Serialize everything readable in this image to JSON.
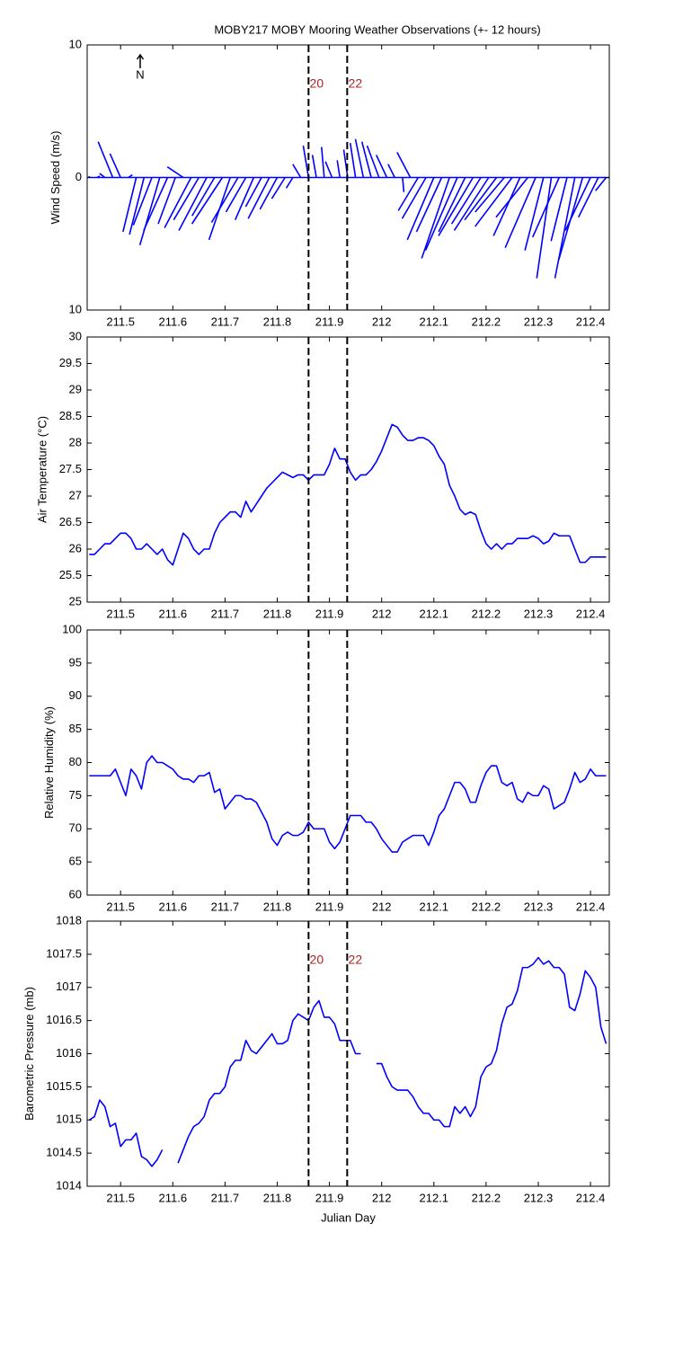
{
  "chart_data": [
    {
      "type": "quiver",
      "title": "MOBY217 MOBY Mooring Weather Observations (+- 12 hours)",
      "ylabel": "Wind Speed (m/s)",
      "north_label": "N",
      "x": [
        211.44,
        211.455,
        211.47,
        211.485,
        211.5,
        211.515,
        211.53,
        211.545,
        211.56,
        211.575,
        211.59,
        211.605,
        211.62,
        211.635,
        211.65,
        211.665,
        211.68,
        211.695,
        211.71,
        211.725,
        211.74,
        211.755,
        211.77,
        211.785,
        211.8,
        211.815,
        211.83,
        211.845,
        211.86,
        211.875,
        211.89,
        211.905,
        211.92,
        211.935,
        211.95,
        211.965,
        211.98,
        211.995,
        212.01,
        212.025,
        212.04,
        212.055,
        212.07,
        212.085,
        212.1,
        212.115,
        212.13,
        212.145,
        212.16,
        212.175,
        212.19,
        212.205,
        212.22,
        212.235,
        212.25,
        212.265,
        212.28,
        212.295,
        212.31,
        212.325,
        212.34,
        212.355,
        212.37,
        212.385,
        212.4,
        212.415,
        212.43
      ],
      "u": [
        0,
        0.2,
        -0.4,
        -1.1,
        -0.8,
        0.3,
        -1.0,
        -1.1,
        -1.4,
        -1.5,
        -1.8,
        -1.3,
        -1.2,
        -2.0,
        -1.9,
        -2.1,
        -1.7,
        -2.3,
        -1.6,
        -2.0,
        -1.5,
        -1.4,
        -1.2,
        -1.6,
        -1.3,
        -1.0,
        -0.5,
        -0.6,
        -0.4,
        -0.3,
        -0.2,
        -0.5,
        -0.2,
        -0.3,
        -0.4,
        -0.6,
        -0.7,
        -0.9,
        -0.8,
        -0.5,
        0.1,
        -1.0,
        -1.5,
        -1.8,
        -2.0,
        -1.9,
        -2.1,
        -2.4,
        -2.0,
        -2.6,
        -2.2,
        -2.6,
        -2.4,
        -2.2,
        -2.8,
        -2.0,
        -2.4,
        -2.3,
        -1.4,
        -1.1,
        -2.0,
        -1.2,
        -1.5,
        -1.8,
        -1.9,
        -1.5,
        -0.8
      ],
      "v": [
        0.1,
        0.1,
        0.3,
        2.7,
        1.8,
        0.2,
        -4.1,
        -4.3,
        -3.6,
        -5.1,
        -4.0,
        -3.5,
        0.8,
        -3.8,
        -3.2,
        -4.0,
        -2.9,
        -3.5,
        -4.7,
        -3.4,
        -2.6,
        -3.2,
        -2.2,
        -3.1,
        -2.4,
        -1.6,
        -0.8,
        1.0,
        2.4,
        1.7,
        2.3,
        1.2,
        1.3,
        2.1,
        2.6,
        2.9,
        2.7,
        2.4,
        1.7,
        1.0,
        -1.1,
        1.9,
        -2.5,
        -3.1,
        -4.7,
        -4.1,
        -6.1,
        -5.5,
        -4.1,
        -4.4,
        -3.5,
        -4.0,
        -3.2,
        -2.6,
        -3.7,
        -4.4,
        -3.0,
        -5.3,
        -5.5,
        -7.6,
        -4.5,
        -4.8,
        -7.6,
        -6.2,
        -4.0,
        -3.0,
        -1.0
      ],
      "color": "#0000ff",
      "xlim": [
        211.436,
        212.436
      ],
      "xticks": [
        211.5,
        211.6,
        211.7,
        211.8,
        211.9,
        212,
        212.1,
        212.2,
        212.3,
        212.4
      ],
      "ylim": [
        -10,
        10
      ],
      "yticks": [
        {
          "value": -10,
          "label": "10"
        },
        0,
        10
      ],
      "vlines": [
        211.86,
        211.934
      ],
      "vline_labels": [
        "20",
        "22"
      ]
    },
    {
      "type": "line",
      "ylabel": "Air Temperature (°C)",
      "x": [
        211.44,
        211.45,
        211.46,
        211.47,
        211.48,
        211.49,
        211.5,
        211.51,
        211.52,
        211.53,
        211.54,
        211.55,
        211.56,
        211.57,
        211.58,
        211.59,
        211.6,
        211.61,
        211.62,
        211.63,
        211.64,
        211.65,
        211.66,
        211.67,
        211.68,
        211.69,
        211.7,
        211.71,
        211.72,
        211.73,
        211.74,
        211.75,
        211.76,
        211.77,
        211.78,
        211.79,
        211.8,
        211.81,
        211.82,
        211.83,
        211.84,
        211.85,
        211.86,
        211.87,
        211.88,
        211.89,
        211.9,
        211.91,
        211.92,
        211.93,
        211.94,
        211.95,
        211.96,
        211.97,
        211.98,
        211.99,
        212,
        212.01,
        212.02,
        212.03,
        212.04,
        212.05,
        212.06,
        212.07,
        212.08,
        212.09,
        212.1,
        212.11,
        212.12,
        212.13,
        212.14,
        212.15,
        212.16,
        212.17,
        212.18,
        212.19,
        212.2,
        212.21,
        212.22,
        212.23,
        212.24,
        212.25,
        212.26,
        212.27,
        212.28,
        212.29,
        212.3,
        212.31,
        212.32,
        212.33,
        212.34,
        212.35,
        212.36,
        212.37,
        212.38,
        212.39,
        212.4,
        212.41,
        212.42,
        212.43
      ],
      "values": [
        25.9,
        25.9,
        26.0,
        26.1,
        26.1,
        26.2,
        26.3,
        26.3,
        26.2,
        26.0,
        26.0,
        26.1,
        26.0,
        25.9,
        26.0,
        25.8,
        25.7,
        26.0,
        26.3,
        26.2,
        26.0,
        25.9,
        26.0,
        26.0,
        26.3,
        26.5,
        26.6,
        26.7,
        26.7,
        26.6,
        26.9,
        26.7,
        26.85,
        27.0,
        27.15,
        27.25,
        27.35,
        27.45,
        27.4,
        27.35,
        27.4,
        27.4,
        27.3,
        27.4,
        27.4,
        27.4,
        27.6,
        27.9,
        27.7,
        27.7,
        27.45,
        27.3,
        27.4,
        27.4,
        27.5,
        27.65,
        27.85,
        28.1,
        28.35,
        28.3,
        28.15,
        28.05,
        28.05,
        28.1,
        28.1,
        28.05,
        27.95,
        27.75,
        27.6,
        27.2,
        27.0,
        26.75,
        26.65,
        26.7,
        26.65,
        26.35,
        26.1,
        26.0,
        26.1,
        26.0,
        26.1,
        26.1,
        26.2,
        26.2,
        26.2,
        26.25,
        26.2,
        26.1,
        26.15,
        26.3,
        26.25,
        26.25,
        26.25,
        26.0,
        25.75,
        25.75,
        25.85,
        25.85,
        25.85,
        25.85
      ],
      "color": "#0000ff",
      "xlim": [
        211.436,
        212.436
      ],
      "xticks": [
        211.5,
        211.6,
        211.7,
        211.8,
        211.9,
        212,
        212.1,
        212.2,
        212.3,
        212.4
      ],
      "ylim": [
        25,
        30
      ],
      "yticks": [
        25,
        25.5,
        26,
        26.5,
        27,
        27.5,
        28,
        28.5,
        29,
        29.5,
        30
      ],
      "vlines": [
        211.86,
        211.934
      ]
    },
    {
      "type": "line",
      "ylabel": "Relative Humidity (%)",
      "x": [
        211.44,
        211.45,
        211.46,
        211.47,
        211.48,
        211.49,
        211.5,
        211.51,
        211.52,
        211.53,
        211.54,
        211.55,
        211.56,
        211.57,
        211.58,
        211.59,
        211.6,
        211.61,
        211.62,
        211.63,
        211.64,
        211.65,
        211.66,
        211.67,
        211.68,
        211.69,
        211.7,
        211.71,
        211.72,
        211.73,
        211.74,
        211.75,
        211.76,
        211.77,
        211.78,
        211.79,
        211.8,
        211.81,
        211.82,
        211.83,
        211.84,
        211.85,
        211.86,
        211.87,
        211.88,
        211.89,
        211.9,
        211.91,
        211.92,
        211.93,
        211.94,
        211.95,
        211.96,
        211.97,
        211.98,
        211.99,
        212,
        212.01,
        212.02,
        212.03,
        212.04,
        212.05,
        212.06,
        212.07,
        212.08,
        212.09,
        212.1,
        212.11,
        212.12,
        212.13,
        212.14,
        212.15,
        212.16,
        212.17,
        212.18,
        212.19,
        212.2,
        212.21,
        212.22,
        212.23,
        212.24,
        212.25,
        212.26,
        212.27,
        212.28,
        212.29,
        212.3,
        212.31,
        212.32,
        212.33,
        212.34,
        212.35,
        212.36,
        212.37,
        212.38,
        212.39,
        212.4,
        212.41,
        212.42,
        212.43
      ],
      "values": [
        78,
        78,
        78,
        78,
        78,
        79,
        77,
        75,
        79,
        78,
        76,
        80,
        81,
        80,
        80,
        79.5,
        79,
        78,
        77.5,
        77.5,
        77,
        78,
        78,
        78.5,
        75.5,
        76,
        73,
        74,
        75,
        75,
        74.5,
        74.5,
        74,
        72.5,
        71,
        68.5,
        67.5,
        69,
        69.5,
        69,
        69,
        69.5,
        71,
        70,
        70,
        70,
        68,
        67,
        68,
        70,
        72,
        72,
        72,
        71,
        71,
        70,
        68.5,
        67.5,
        66.5,
        66.5,
        68,
        68.5,
        69,
        69,
        69,
        67.5,
        69.5,
        72,
        73,
        75,
        77,
        77,
        76,
        74,
        74,
        76.5,
        78.5,
        79.5,
        79.5,
        77,
        76.5,
        77,
        74.5,
        74,
        75.5,
        75,
        75,
        76.5,
        76,
        73,
        73.5,
        74,
        76,
        78.5,
        77,
        77.5,
        79,
        78,
        78,
        78
      ],
      "color": "#0000ff",
      "xlim": [
        211.436,
        212.436
      ],
      "xticks": [
        211.5,
        211.6,
        211.7,
        211.8,
        211.9,
        212,
        212.1,
        212.2,
        212.3,
        212.4
      ],
      "ylim": [
        60,
        100
      ],
      "yticks": [
        60,
        65,
        70,
        75,
        80,
        85,
        90,
        95,
        100
      ],
      "vlines": [
        211.86,
        211.934
      ]
    },
    {
      "type": "line",
      "ylabel": "Barometric Pressure (mb)",
      "xlabel": "Julian Day",
      "x": [
        211.44,
        211.45,
        211.46,
        211.47,
        211.48,
        211.49,
        211.5,
        211.51,
        211.52,
        211.53,
        211.54,
        211.55,
        211.56,
        211.57,
        211.58,
        211.59,
        211.6,
        211.61,
        211.62,
        211.63,
        211.64,
        211.65,
        211.66,
        211.67,
        211.68,
        211.69,
        211.7,
        211.71,
        211.72,
        211.73,
        211.74,
        211.75,
        211.76,
        211.77,
        211.78,
        211.79,
        211.8,
        211.81,
        211.82,
        211.83,
        211.84,
        211.85,
        211.86,
        211.87,
        211.88,
        211.89,
        211.9,
        211.91,
        211.92,
        211.93,
        211.94,
        211.95,
        211.96,
        211.97,
        211.98,
        211.99,
        212,
        212.01,
        212.02,
        212.03,
        212.04,
        212.05,
        212.06,
        212.07,
        212.08,
        212.09,
        212.1,
        212.11,
        212.12,
        212.13,
        212.14,
        212.15,
        212.16,
        212.17,
        212.18,
        212.19,
        212.2,
        212.21,
        212.22,
        212.23,
        212.24,
        212.25,
        212.26,
        212.27,
        212.28,
        212.29,
        212.3,
        212.31,
        212.32,
        212.33,
        212.34,
        212.35,
        212.36,
        212.37,
        212.38,
        212.39,
        212.4,
        212.41,
        212.42,
        212.43
      ],
      "values": [
        1015.0,
        1015.05,
        1015.3,
        1015.2,
        1014.9,
        1014.95,
        1014.6,
        1014.7,
        1014.7,
        1014.8,
        1014.45,
        1014.4,
        1014.3,
        1014.4,
        1014.55,
        null,
        null,
        1014.35,
        1014.55,
        1014.75,
        1014.9,
        1014.95,
        1015.05,
        1015.3,
        1015.4,
        1015.4,
        1015.5,
        1015.8,
        1015.9,
        1015.9,
        1016.2,
        1016.05,
        1016.0,
        1016.1,
        1016.2,
        1016.3,
        1016.15,
        1016.15,
        1016.2,
        1016.5,
        1016.6,
        1016.55,
        1016.5,
        1016.7,
        1016.8,
        1016.55,
        1016.55,
        1016.45,
        1016.2,
        1016.2,
        1016.2,
        1016.0,
        1016.0,
        null,
        null,
        1015.85,
        1015.85,
        1015.65,
        1015.5,
        1015.45,
        1015.45,
        1015.45,
        1015.35,
        1015.2,
        1015.1,
        1015.1,
        1015.0,
        1015.0,
        1014.9,
        1014.9,
        1015.2,
        1015.1,
        1015.2,
        1015.05,
        1015.2,
        1015.65,
        1015.8,
        1015.85,
        1016.05,
        1016.45,
        1016.7,
        1016.75,
        1016.95,
        1017.3,
        1017.3,
        1017.35,
        1017.45,
        1017.35,
        1017.4,
        1017.3,
        1017.3,
        1017.2,
        1016.7,
        1016.65,
        1016.9,
        1017.25,
        1017.15,
        1017.0,
        1016.4,
        1016.15
      ],
      "color": "#0000ff",
      "xlim": [
        211.436,
        212.436
      ],
      "xticks": [
        211.5,
        211.6,
        211.7,
        211.8,
        211.9,
        212,
        212.1,
        212.2,
        212.3,
        212.4
      ],
      "ylim": [
        1014,
        1018
      ],
      "yticks": [
        1014,
        1014.5,
        1015,
        1015.5,
        1016,
        1016.5,
        1017,
        1017.5,
        1018
      ],
      "vlines": [
        211.86,
        211.934
      ],
      "vline_labels": [
        "20",
        "22"
      ]
    }
  ]
}
